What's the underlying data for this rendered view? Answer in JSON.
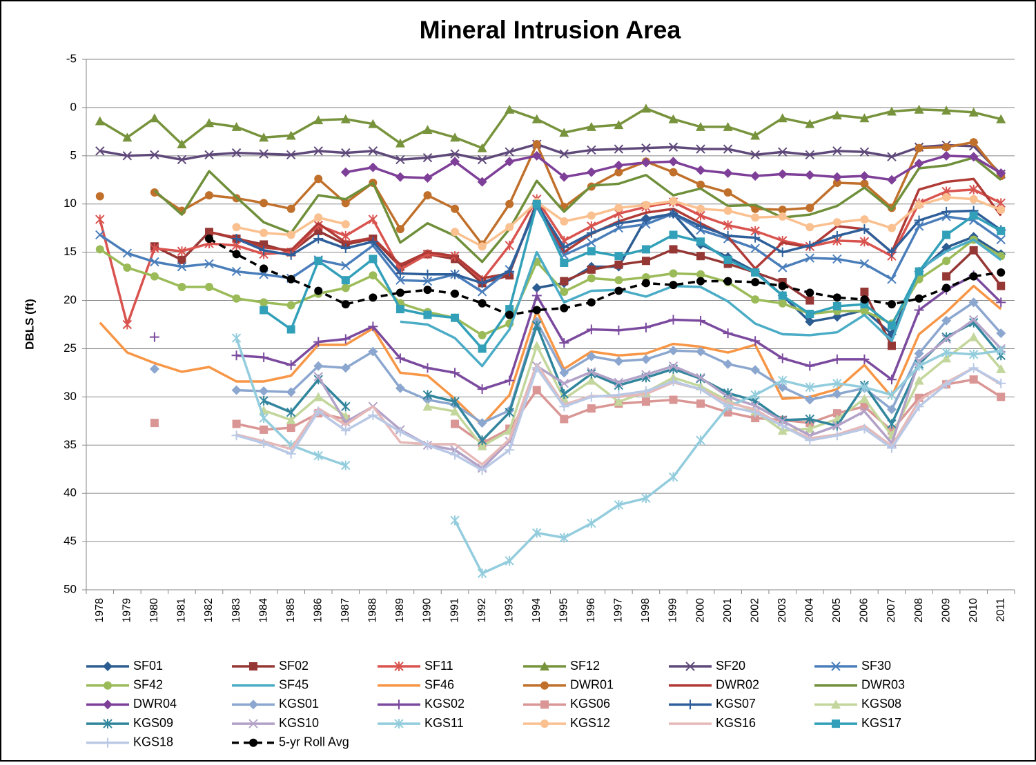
{
  "chart_data": {
    "type": "line",
    "title": "Mineral Intrusion Area",
    "ylabel": "DBLS (ft)",
    "categories": [
      "1978",
      "1979",
      "1980",
      "1981",
      "1982",
      "1983",
      "1984",
      "1985",
      "1986",
      "1987",
      "1988",
      "1989",
      "1990",
      "1991",
      "1992",
      "1993",
      "1994",
      "1995",
      "1996",
      "1997",
      "1998",
      "1999",
      "2000",
      "2001",
      "2002",
      "2003",
      "2004",
      "2005",
      "2006",
      "2007",
      "2008",
      "2009",
      "2010",
      "2011"
    ],
    "ylim": [
      -5,
      50
    ],
    "yticks": [
      -5,
      0,
      5,
      10,
      15,
      20,
      25,
      30,
      35,
      40,
      45,
      50
    ],
    "y_inverted": true,
    "grid": true,
    "legend": "bottom",
    "series": [
      {
        "name": "SF01",
        "color": "#2c5d92",
        "marker": "diamond",
        "values": [
          null,
          null,
          null,
          null,
          null,
          null,
          null,
          null,
          null,
          null,
          null,
          null,
          null,
          null,
          null,
          null,
          18.7,
          18.2,
          16.5,
          16.5,
          11.5,
          11.0,
          14.2,
          15.5,
          17.0,
          19.5,
          22.2,
          21.7,
          21.0,
          23.5,
          17.0,
          14.5,
          13.4,
          15.2
        ]
      },
      {
        "name": "SF02",
        "color": "#953735",
        "marker": "square",
        "values": [
          null,
          null,
          14.4,
          15.8,
          12.9,
          13.6,
          14.2,
          15.0,
          12.8,
          14.2,
          13.6,
          16.5,
          15.2,
          15.7,
          18.2,
          17.4,
          null,
          18.0,
          16.8,
          16.3,
          15.9,
          14.7,
          15.4,
          16.2,
          17.1,
          18.1,
          20.0,
          null,
          19.1,
          24.7,
          null,
          17.5,
          14.8,
          18.5
        ]
      },
      {
        "name": "SF11",
        "color": "#d9534f",
        "marker": "asterisk",
        "values": [
          11.6,
          22.5,
          14.6,
          14.9,
          14.1,
          14.3,
          15.2,
          15.0,
          12.2,
          13.3,
          11.6,
          16.8,
          15.2,
          15.4,
          17.9,
          14.3,
          9.5,
          13.8,
          12.3,
          11.0,
          10.3,
          9.8,
          11.2,
          12.2,
          12.8,
          13.8,
          14.4,
          13.8,
          13.9,
          15.4,
          9.9,
          8.7,
          8.5,
          9.9
        ]
      },
      {
        "name": "SF12",
        "color": "#77933c",
        "marker": "triangle",
        "values": [
          1.4,
          3.1,
          1.1,
          3.8,
          1.6,
          2.0,
          3.1,
          2.9,
          1.3,
          1.2,
          1.7,
          3.7,
          2.3,
          3.1,
          4.2,
          0.2,
          1.2,
          2.6,
          2.0,
          1.8,
          0.1,
          1.2,
          2.0,
          2.0,
          2.9,
          1.1,
          1.7,
          0.8,
          1.1,
          0.4,
          0.2,
          0.3,
          0.5,
          1.2
        ]
      },
      {
        "name": "SF20",
        "color": "#5f497a",
        "marker": "x",
        "values": [
          4.5,
          5.0,
          4.9,
          5.4,
          4.9,
          4.7,
          4.8,
          4.9,
          4.5,
          4.7,
          4.5,
          5.4,
          5.2,
          4.8,
          5.4,
          4.6,
          3.8,
          4.8,
          4.4,
          4.3,
          4.2,
          4.1,
          4.3,
          4.3,
          4.9,
          4.6,
          4.9,
          4.5,
          4.6,
          5.1,
          4.1,
          3.9,
          4.0,
          6.9
        ]
      },
      {
        "name": "SF30",
        "color": "#4a7ebb",
        "marker": "x",
        "values": [
          13.2,
          15.1,
          16.0,
          16.5,
          16.2,
          17.0,
          17.3,
          17.7,
          15.8,
          16.4,
          14.3,
          17.9,
          18.0,
          17.3,
          19.1,
          16.8,
          10.3,
          15.3,
          14.0,
          12.5,
          12.1,
          11.0,
          12.7,
          13.6,
          14.6,
          16.6,
          15.6,
          15.7,
          16.2,
          17.8,
          12.3,
          11.3,
          11.7,
          13.7
        ]
      },
      {
        "name": "SF42",
        "color": "#9bbb59",
        "marker": "circle",
        "values": [
          14.7,
          16.6,
          17.5,
          18.6,
          18.6,
          19.8,
          20.2,
          20.5,
          19.3,
          18.7,
          17.4,
          20.3,
          21.2,
          21.8,
          23.6,
          22.4,
          16.0,
          19.1,
          17.7,
          17.9,
          17.6,
          17.2,
          17.3,
          18.1,
          19.9,
          20.3,
          21.4,
          21.1,
          21.1,
          22.4,
          17.8,
          15.9,
          13.7,
          15.4
        ]
      },
      {
        "name": "SF45",
        "color": "#4bacc6",
        "marker": "none",
        "values": [
          null,
          null,
          null,
          null,
          null,
          null,
          null,
          null,
          null,
          null,
          null,
          22.2,
          22.5,
          23.9,
          26.8,
          23.0,
          15.0,
          20.2,
          19.0,
          18.9,
          19.6,
          18.5,
          18.6,
          20.1,
          22.4,
          23.5,
          23.6,
          23.3,
          21.5,
          24.2,
          16.8,
          14.9,
          13.7,
          15.8
        ]
      },
      {
        "name": "SF46",
        "color": "#f79646",
        "marker": "none",
        "values": [
          22.3,
          25.4,
          26.5,
          27.4,
          26.9,
          28.4,
          28.4,
          27.8,
          24.6,
          24.6,
          22.9,
          27.5,
          27.8,
          30.2,
          32.9,
          29.8,
          21.1,
          27.1,
          25.3,
          25.7,
          25.5,
          24.5,
          24.8,
          25.4,
          24.6,
          30.2,
          30.0,
          29.2,
          26.7,
          30.0,
          23.5,
          21.2,
          18.5,
          20.9
        ]
      },
      {
        "name": "DWR01",
        "color": "#c0702b",
        "marker": "circle",
        "values": [
          9.2,
          null,
          8.8,
          10.7,
          9.1,
          9.4,
          9.9,
          10.5,
          7.4,
          9.9,
          7.8,
          12.6,
          9.1,
          10.5,
          14.2,
          10.0,
          3.8,
          10.3,
          8.2,
          6.7,
          5.6,
          6.7,
          8.0,
          8.8,
          10.5,
          10.6,
          10.4,
          7.8,
          7.9,
          10.4,
          4.2,
          4.1,
          3.6,
          7.1
        ]
      },
      {
        "name": "DWR02",
        "color": "#b03a36",
        "marker": "none",
        "values": [
          null,
          null,
          null,
          null,
          12.9,
          13.5,
          14.5,
          14.8,
          12.0,
          14.0,
          13.5,
          16.3,
          15.0,
          15.4,
          17.7,
          17.2,
          9.8,
          15.0,
          13.1,
          11.8,
          10.9,
          10.5,
          12.0,
          13.4,
          16.7,
          14.0,
          14.5,
          12.3,
          12.6,
          15.0,
          8.5,
          7.7,
          7.4,
          11.2
        ]
      },
      {
        "name": "DWR03",
        "color": "#6f8f3a",
        "marker": "none",
        "values": [
          null,
          null,
          8.6,
          11.1,
          6.6,
          9.3,
          11.9,
          13.0,
          9.1,
          9.5,
          7.8,
          14.0,
          12.0,
          13.3,
          16.0,
          12.6,
          7.6,
          10.8,
          8.1,
          7.9,
          7.0,
          9.1,
          8.4,
          10.2,
          10.1,
          11.4,
          11.1,
          10.2,
          8.3,
          10.6,
          6.3,
          6.0,
          5.2,
          7.5
        ]
      },
      {
        "name": "DWR04",
        "color": "#7e3f98",
        "marker": "diamond",
        "values": [
          null,
          null,
          null,
          null,
          null,
          null,
          null,
          null,
          null,
          6.7,
          6.2,
          7.2,
          7.3,
          5.6,
          7.7,
          5.6,
          5.0,
          7.2,
          6.7,
          6.0,
          5.7,
          5.6,
          6.5,
          6.8,
          7.1,
          6.9,
          7.0,
          7.2,
          7.1,
          7.5,
          5.8,
          5.0,
          5.1,
          6.8
        ]
      },
      {
        "name": "KGS01",
        "color": "#8ca7cf",
        "marker": "diamond",
        "values": [
          null,
          null,
          27.1,
          null,
          null,
          29.3,
          29.4,
          29.5,
          26.8,
          27.0,
          25.3,
          29.1,
          30.3,
          30.8,
          32.7,
          31.4,
          22.2,
          27.5,
          25.8,
          26.3,
          26.1,
          25.2,
          25.3,
          26.6,
          27.2,
          29.0,
          30.3,
          29.7,
          29.1,
          31.3,
          25.5,
          22.1,
          20.2,
          23.4
        ]
      },
      {
        "name": "KGS02",
        "color": "#7b4a9e",
        "marker": "plus",
        "values": [
          null,
          null,
          23.8,
          null,
          null,
          25.7,
          25.9,
          26.7,
          24.3,
          24.0,
          22.7,
          26.0,
          27.0,
          27.5,
          29.2,
          28.3,
          19.5,
          24.4,
          23.0,
          23.1,
          22.8,
          22.0,
          22.1,
          23.4,
          24.2,
          26.0,
          26.8,
          26.1,
          26.1,
          28.2,
          21.0,
          18.9,
          17.4,
          20.2
        ]
      },
      {
        "name": "KGS06",
        "color": "#d99694",
        "marker": "square",
        "values": [
          null,
          null,
          32.7,
          null,
          null,
          32.8,
          33.4,
          33.2,
          31.7,
          32.3,
          null,
          null,
          null,
          32.8,
          34.8,
          33.3,
          29.3,
          32.3,
          31.2,
          30.7,
          30.5,
          30.3,
          30.7,
          31.6,
          32.2,
          32.4,
          32.7,
          31.7,
          31.0,
          33.5,
          30.1,
          28.7,
          28.2,
          30.0
        ]
      },
      {
        "name": "KGS07",
        "color": "#2e5f9a",
        "marker": "plus",
        "values": [
          null,
          null,
          null,
          null,
          null,
          13.6,
          14.8,
          15.3,
          13.6,
          14.6,
          13.9,
          17.2,
          17.3,
          17.3,
          18.2,
          17.0,
          10.0,
          14.5,
          13.0,
          12.0,
          11.6,
          11.0,
          12.3,
          13.3,
          13.5,
          15.0,
          14.3,
          13.3,
          12.6,
          15.0,
          11.7,
          10.8,
          10.7,
          12.7
        ]
      },
      {
        "name": "KGS08",
        "color": "#c3d69b",
        "marker": "triangle",
        "values": [
          null,
          null,
          null,
          null,
          null,
          null,
          31.4,
          32.4,
          30.0,
          32.0,
          null,
          null,
          31.0,
          31.5,
          35.1,
          33.5,
          24.7,
          30.2,
          28.3,
          30.5,
          29.5,
          28.0,
          28.9,
          30.4,
          31.5,
          33.5,
          33.3,
          32.3,
          30.2,
          34.0,
          28.3,
          26.0,
          23.8,
          27.1
        ]
      },
      {
        "name": "KGS09",
        "color": "#31859c",
        "marker": "asterisk",
        "values": [
          null,
          null,
          null,
          null,
          null,
          null,
          30.4,
          31.6,
          28.2,
          31.0,
          null,
          null,
          29.8,
          30.5,
          34.5,
          31.6,
          22.6,
          29.7,
          27.6,
          28.8,
          28.0,
          27.1,
          28.1,
          29.6,
          30.4,
          32.4,
          32.3,
          33.0,
          28.8,
          32.8,
          26.6,
          23.8,
          22.3,
          25.7
        ]
      },
      {
        "name": "KGS10",
        "color": "#b3a2c7",
        "marker": "x",
        "values": [
          null,
          null,
          null,
          null,
          null,
          null,
          null,
          null,
          27.9,
          32.6,
          31.0,
          33.4,
          35.0,
          35.5,
          37.4,
          34.6,
          26.8,
          28.6,
          27.4,
          28.5,
          27.7,
          26.8,
          28.0,
          30.0,
          30.9,
          32.5,
          34.0,
          33.0,
          31.5,
          34.8,
          26.3,
          24.0,
          22.0,
          25.0
        ]
      },
      {
        "name": "KGS11",
        "color": "#93cddd",
        "marker": "asterisk",
        "values": [
          null,
          null,
          null,
          null,
          null,
          23.9,
          32.2,
          35.0,
          36.1,
          37.1,
          null,
          null,
          null,
          42.8,
          48.3,
          47.0,
          44.1,
          44.6,
          43.1,
          41.2,
          40.5,
          38.3,
          34.5,
          31.0,
          29.8,
          28.3,
          29.0,
          28.6,
          29.0,
          29.8,
          26.8,
          25.4,
          25.6,
          25.2
        ]
      },
      {
        "name": "KGS12",
        "color": "#fac090",
        "marker": "circle",
        "values": [
          null,
          null,
          null,
          null,
          null,
          12.4,
          13.0,
          13.2,
          11.4,
          12.1,
          null,
          null,
          null,
          12.9,
          14.4,
          12.4,
          9.8,
          11.8,
          11.2,
          10.4,
          10.1,
          9.7,
          10.5,
          10.7,
          11.4,
          11.3,
          12.4,
          11.9,
          11.6,
          12.5,
          10.1,
          9.3,
          9.5,
          10.6
        ]
      },
      {
        "name": "KGS16",
        "color": "#e6b9b8",
        "marker": "none",
        "values": [
          null,
          null,
          null,
          null,
          null,
          33.9,
          34.6,
          35.4,
          31.2,
          32.9,
          31.0,
          34.7,
          34.9,
          34.9,
          37.0,
          34.4,
          26.6,
          30.8,
          29.9,
          30.0,
          29.7,
          28.5,
          29.2,
          30.6,
          31.3,
          33.0,
          34.3,
          33.9,
          33.0,
          35.1,
          30.4,
          28.5,
          27.0,
          28.7
        ]
      },
      {
        "name": "KGS17",
        "color": "#31a0b8",
        "marker": "square",
        "values": [
          null,
          null,
          null,
          null,
          null,
          null,
          21.0,
          23.0,
          15.9,
          17.9,
          15.7,
          20.9,
          21.5,
          21.8,
          25.0,
          20.9,
          10.0,
          16.1,
          14.9,
          15.4,
          14.7,
          13.2,
          13.9,
          15.8,
          17.1,
          19.5,
          21.4,
          20.6,
          20.4,
          22.6,
          17.0,
          13.2,
          11.2,
          12.8
        ]
      },
      {
        "name": "KGS18",
        "color": "#b9c8e5",
        "marker": "plus",
        "values": [
          null,
          null,
          null,
          null,
          null,
          34.0,
          34.8,
          35.9,
          31.5,
          33.5,
          31.9,
          33.6,
          35.0,
          36.0,
          37.6,
          35.5,
          27.0,
          31.0,
          30.0,
          29.8,
          29.4,
          28.4,
          29.2,
          31.0,
          31.6,
          33.0,
          34.5,
          34.0,
          33.3,
          35.3,
          31.0,
          28.7,
          27.0,
          28.6
        ]
      },
      {
        "name": "5-yr Roll Avg",
        "color": "#000000",
        "marker": "circle",
        "dashed": true,
        "values": [
          null,
          null,
          null,
          null,
          13.6,
          15.2,
          16.7,
          17.8,
          19.0,
          20.4,
          19.7,
          19.2,
          18.9,
          19.3,
          20.3,
          21.5,
          21.0,
          20.8,
          20.2,
          19.0,
          18.2,
          18.4,
          18.0,
          18.0,
          18.1,
          18.5,
          19.2,
          19.7,
          19.9,
          20.4,
          19.8,
          18.7,
          17.5,
          17.1
        ]
      }
    ]
  }
}
